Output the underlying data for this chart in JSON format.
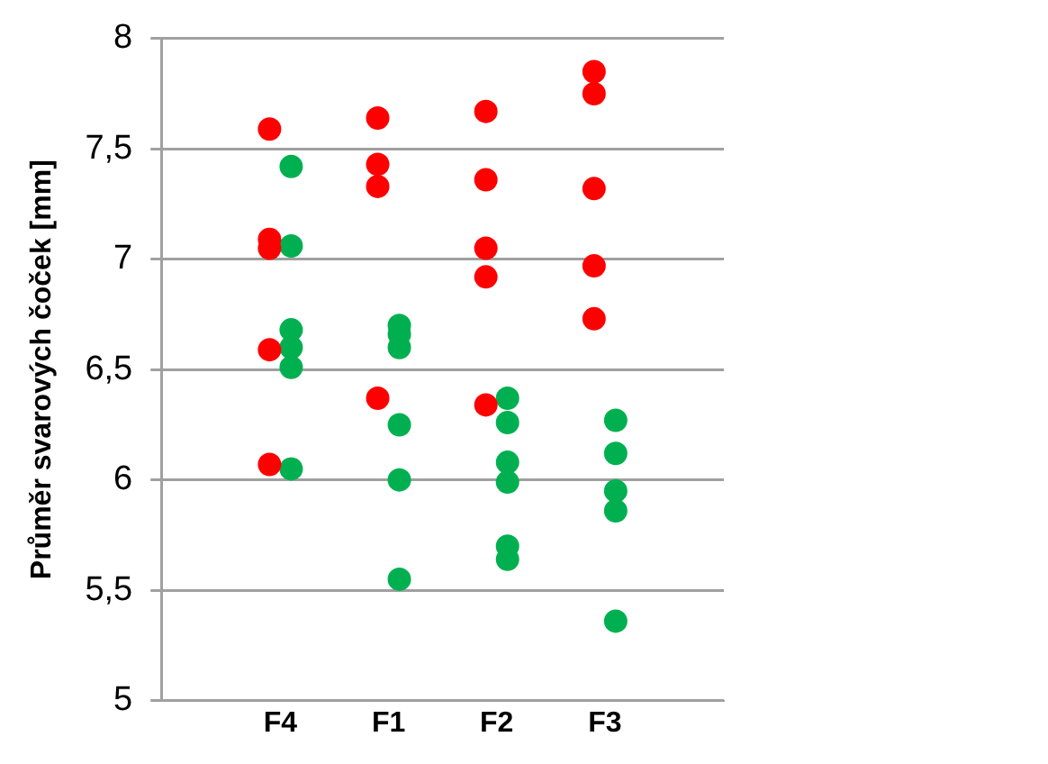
{
  "chart_data": {
    "type": "scatter",
    "ylabel": "Průměr svarových čoček [mm]",
    "categories": [
      "F4",
      "F1",
      "F2",
      "F3"
    ],
    "ylim": [
      5,
      8
    ],
    "yticks": [
      5,
      {
        "value": 5.5,
        "label": "5,5"
      },
      6,
      {
        "value": 6.5,
        "label": "6,5"
      },
      7,
      {
        "value": 7.5,
        "label": "7,5"
      },
      8
    ],
    "grid": "y",
    "marker": "circle",
    "series": [
      {
        "color": "#ff0000",
        "x": [
          "F4",
          "F4",
          "F4",
          "F4",
          "F4",
          "F1",
          "F1",
          "F1",
          "F1",
          "F2",
          "F2",
          "F2",
          "F2",
          "F2",
          "F3",
          "F3",
          "F3",
          "F3",
          "F3"
        ],
        "values": [
          7.59,
          7.09,
          7.05,
          6.59,
          6.07,
          7.64,
          7.43,
          7.33,
          6.37,
          7.67,
          7.36,
          7.05,
          6.92,
          6.34,
          7.85,
          7.75,
          7.32,
          6.97,
          6.73
        ]
      },
      {
        "color": "#00b050",
        "x": [
          "F4",
          "F4",
          "F4",
          "F4",
          "F4",
          "F4",
          "F1",
          "F1",
          "F1",
          "F1",
          "F1",
          "F1",
          "F2",
          "F2",
          "F2",
          "F2",
          "F2",
          "F2",
          "F3",
          "F3",
          "F3",
          "F3",
          "F3"
        ],
        "values": [
          7.42,
          7.06,
          6.68,
          6.6,
          6.51,
          6.05,
          6.7,
          6.66,
          6.6,
          6.25,
          6,
          5.55,
          6.37,
          6.26,
          6.08,
          5.99,
          5.7,
          5.64,
          6.27,
          6.12,
          5.95,
          5.86,
          5.36
        ]
      }
    ]
  }
}
